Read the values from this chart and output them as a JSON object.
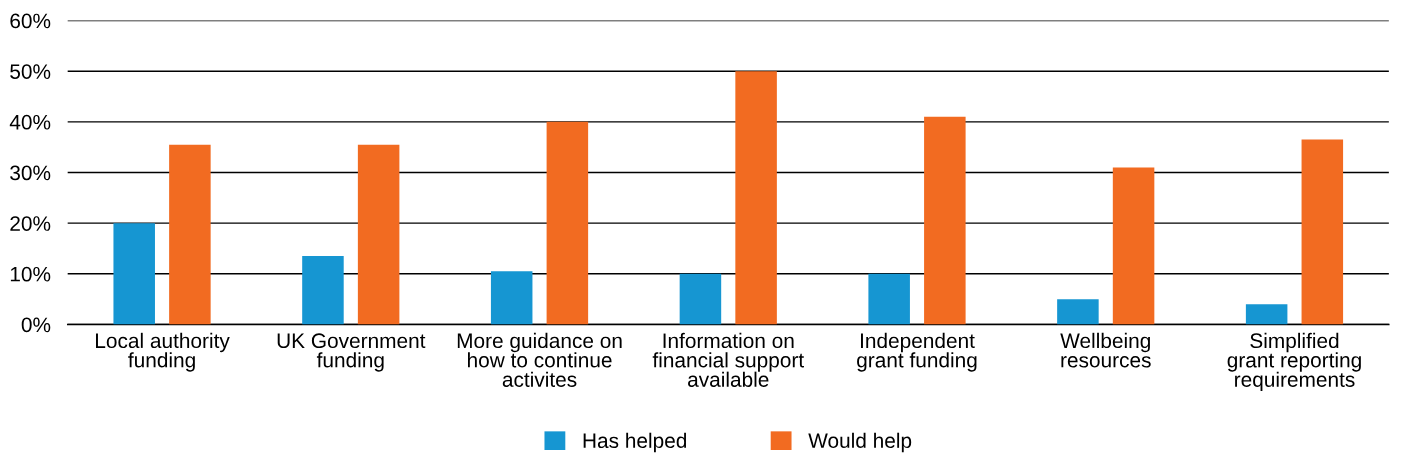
{
  "chart_data": {
    "type": "bar",
    "categories": [
      "Local authority\nfunding",
      "UK Government\nfunding",
      "More guidance on\nhow to continue\nactivites",
      "Information on\nfinancial support\navailable",
      "Independent\ngrant funding",
      "Wellbeing\nresources",
      "Simplified\ngrant reporting\nrequirements"
    ],
    "series": [
      {
        "name": "Has helped",
        "color": "#1696d2",
        "values": [
          20,
          13.5,
          10.5,
          10,
          10,
          5,
          4
        ]
      },
      {
        "name": "Would help",
        "color": "#f26b21",
        "values": [
          35.5,
          35.5,
          40,
          50,
          41,
          31,
          36.5
        ]
      }
    ],
    "ylim": [
      0,
      60
    ],
    "yticks": [
      {
        "value": 0,
        "label": "0%"
      },
      {
        "value": 10,
        "label": "10%"
      },
      {
        "value": 20,
        "label": "20%"
      },
      {
        "value": 30,
        "label": "30%"
      },
      {
        "value": 40,
        "label": "40%"
      },
      {
        "value": 50,
        "label": "50%"
      },
      {
        "value": 60,
        "label": "60%"
      }
    ],
    "grid": "y",
    "legend": "bottom"
  }
}
